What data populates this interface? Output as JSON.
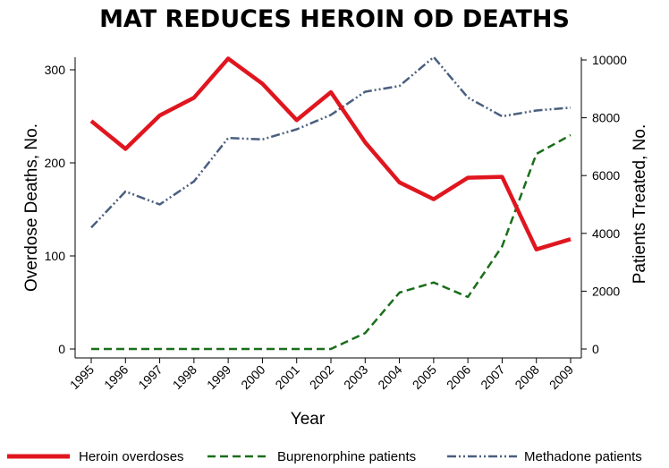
{
  "chart_data": {
    "type": "line",
    "title": "MAT REDUCES HEROIN OD DEATHS",
    "xlabel": "Year",
    "ylabel_left": "Overdose Deaths, No.",
    "ylabel_right": "Patients Treated, No.",
    "x": [
      "1995",
      "1996",
      "1997",
      "1998",
      "1999",
      "2000",
      "2001",
      "2002",
      "2003",
      "2004",
      "2005",
      "2006",
      "2007",
      "2008",
      "2009"
    ],
    "ylim_left": [
      0,
      320
    ],
    "yticks_left": [
      0,
      100,
      200,
      300
    ],
    "ytick_labels_left": [
      "0",
      "100",
      "200",
      "300"
    ],
    "ylim_right": [
      0,
      10000
    ],
    "yticks_right": [
      0,
      2000,
      4000,
      6000,
      8000,
      10000
    ],
    "ytick_labels_right": [
      "0",
      "2000",
      "4000",
      "6000",
      "8000",
      "10000"
    ],
    "grid": false,
    "legend_position": "bottom",
    "series": [
      {
        "name": "Heroin overdoses",
        "axis": "left",
        "color": "#e0161f",
        "style": "solid",
        "values": [
          245,
          215,
          251,
          270,
          312,
          285,
          246,
          276,
          222,
          179,
          161,
          184,
          185,
          107,
          118
        ]
      },
      {
        "name": "Buprenorphine patients",
        "axis": "right",
        "color": "#1a6e1a",
        "style": "dashed",
        "values": [
          0,
          0,
          0,
          0,
          0,
          0,
          0,
          0,
          550,
          1950,
          2300,
          1800,
          3550,
          6750,
          7400
        ]
      },
      {
        "name": "Methadone patients",
        "axis": "right",
        "color": "#4a5f7f",
        "style": "dash-dot-dot",
        "values": [
          4200,
          5450,
          5000,
          5800,
          7300,
          7250,
          7600,
          8100,
          8900,
          9100,
          10100,
          8700,
          8050,
          8250,
          8350
        ]
      }
    ]
  }
}
